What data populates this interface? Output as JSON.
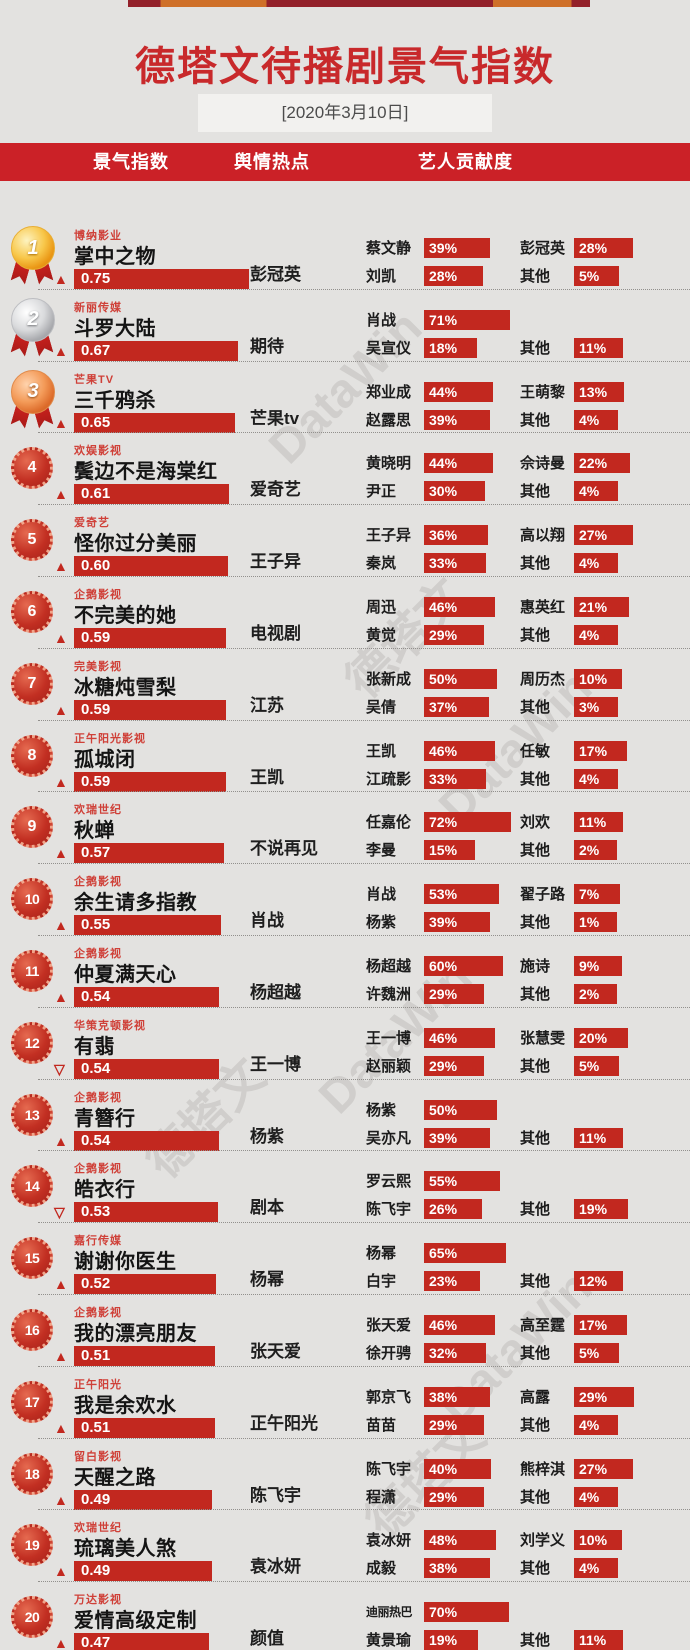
{
  "theme": {
    "background": "#e3e2e0",
    "bar_red": "#c2281f",
    "band_red": "#cb2127",
    "title_red": "#c8292b"
  },
  "watermark": {
    "cn": "德塔文",
    "en": "DataWin"
  },
  "header": {
    "title": "德塔文待播剧景气指数",
    "date": "[2020年3月10日]",
    "columns": [
      "景气指数",
      "舆情热点",
      "艺人贡献度"
    ]
  },
  "chart_data": {
    "type": "bar",
    "title": "德塔文待播剧景气指数",
    "date": "[2020年3月10日]",
    "columns": [
      "景气指数",
      "舆情热点",
      "艺人贡献度"
    ],
    "index_range": [
      0,
      1
    ],
    "rows": [
      {
        "rank": 1,
        "company": "博纳影业",
        "title": "掌中之物",
        "trend": "up",
        "index": 0.75,
        "index_label": "0.75",
        "hotspot": "彭冠英",
        "left": [
          {
            "name": "蔡文静",
            "pct": 39,
            "label": "39%"
          },
          {
            "name": "刘凯",
            "pct": 28,
            "label": "28%"
          }
        ],
        "right": [
          {
            "name": "彭冠英",
            "pct": 28,
            "label": "28%"
          },
          {
            "name": "其他",
            "pct": 5,
            "label": "5%"
          }
        ]
      },
      {
        "rank": 2,
        "company": "新丽传媒",
        "title": "斗罗大陆",
        "trend": "up",
        "index": 0.67,
        "index_label": "0.67",
        "hotspot": "期待",
        "left": [
          {
            "name": "肖战",
            "pct": 71,
            "label": "71%"
          },
          {
            "name": "吴宣仪",
            "pct": 18,
            "label": "18%"
          }
        ],
        "right": [
          null,
          {
            "name": "其他",
            "pct": 11,
            "label": "11%"
          }
        ]
      },
      {
        "rank": 3,
        "company": "芒果TV",
        "title": "三千鸦杀",
        "trend": "up",
        "index": 0.65,
        "index_label": "0.65",
        "hotspot": "芒果tv",
        "left": [
          {
            "name": "郑业成",
            "pct": 44,
            "label": "44%"
          },
          {
            "name": "赵露思",
            "pct": 39,
            "label": "39%"
          }
        ],
        "right": [
          {
            "name": "王萌黎",
            "pct": 13,
            "label": "13%"
          },
          {
            "name": "其他",
            "pct": 4,
            "label": "4%"
          }
        ]
      },
      {
        "rank": 4,
        "company": "欢娱影视",
        "title": "鬓边不是海棠红",
        "trend": "up",
        "index": 0.61,
        "index_label": "0.61",
        "hotspot": "爱奇艺",
        "left": [
          {
            "name": "黄晓明",
            "pct": 44,
            "label": "44%"
          },
          {
            "name": "尹正",
            "pct": 30,
            "label": "30%"
          }
        ],
        "right": [
          {
            "name": "佘诗曼",
            "pct": 22,
            "label": "22%"
          },
          {
            "name": "其他",
            "pct": 4,
            "label": "4%"
          }
        ]
      },
      {
        "rank": 5,
        "company": "爱奇艺",
        "title": "怪你过分美丽",
        "trend": "up",
        "index": 0.6,
        "index_label": "0.60",
        "hotspot": "王子异",
        "left": [
          {
            "name": "王子异",
            "pct": 36,
            "label": "36%"
          },
          {
            "name": "秦岚",
            "pct": 33,
            "label": "33%"
          }
        ],
        "right": [
          {
            "name": "高以翔",
            "pct": 27,
            "label": "27%"
          },
          {
            "name": "其他",
            "pct": 4,
            "label": "4%"
          }
        ]
      },
      {
        "rank": 6,
        "company": "企鹅影视",
        "title": "不完美的她",
        "trend": "up",
        "index": 0.59,
        "index_label": "0.59",
        "hotspot": "电视剧",
        "left": [
          {
            "name": "周迅",
            "pct": 46,
            "label": "46%"
          },
          {
            "name": "黄觉",
            "pct": 29,
            "label": "29%"
          }
        ],
        "right": [
          {
            "name": "惠英红",
            "pct": 21,
            "label": "21%"
          },
          {
            "name": "其他",
            "pct": 4,
            "label": "4%"
          }
        ]
      },
      {
        "rank": 7,
        "company": "完美影视",
        "title": "冰糖炖雪梨",
        "trend": "up",
        "index": 0.59,
        "index_label": "0.59",
        "hotspot": "江苏",
        "left": [
          {
            "name": "张新成",
            "pct": 50,
            "label": "50%"
          },
          {
            "name": "吴倩",
            "pct": 37,
            "label": "37%"
          }
        ],
        "right": [
          {
            "name": "周历杰",
            "pct": 10,
            "label": "10%"
          },
          {
            "name": "其他",
            "pct": 3,
            "label": "3%"
          }
        ]
      },
      {
        "rank": 8,
        "company": "正午阳光影视",
        "title": "孤城闭",
        "trend": "up",
        "index": 0.59,
        "index_label": "0.59",
        "hotspot": "王凯",
        "left": [
          {
            "name": "王凯",
            "pct": 46,
            "label": "46%"
          },
          {
            "name": "江疏影",
            "pct": 33,
            "label": "33%"
          }
        ],
        "right": [
          {
            "name": "任敏",
            "pct": 17,
            "label": "17%"
          },
          {
            "name": "其他",
            "pct": 4,
            "label": "4%"
          }
        ]
      },
      {
        "rank": 9,
        "company": "欢瑞世纪",
        "title": "秋蝉",
        "trend": "up",
        "index": 0.57,
        "index_label": "0.57",
        "hotspot": "不说再见",
        "left": [
          {
            "name": "任嘉伦",
            "pct": 72,
            "label": "72%"
          },
          {
            "name": "李曼",
            "pct": 15,
            "label": "15%"
          }
        ],
        "right": [
          {
            "name": "刘欢",
            "pct": 11,
            "label": "11%"
          },
          {
            "name": "其他",
            "pct": 2,
            "label": "2%"
          }
        ]
      },
      {
        "rank": 10,
        "company": "企鹅影视",
        "title": "余生请多指教",
        "trend": "up",
        "index": 0.55,
        "index_label": "0.55",
        "hotspot": "肖战",
        "left": [
          {
            "name": "肖战",
            "pct": 53,
            "label": "53%"
          },
          {
            "name": "杨紫",
            "pct": 39,
            "label": "39%"
          }
        ],
        "right": [
          {
            "name": "翟子路",
            "pct": 7,
            "label": "7%"
          },
          {
            "name": "其他",
            "pct": 1,
            "label": "1%"
          }
        ]
      },
      {
        "rank": 11,
        "company": "企鹅影视",
        "title": "仲夏满天心",
        "trend": "up",
        "index": 0.54,
        "index_label": "0.54",
        "hotspot": "杨超越",
        "left": [
          {
            "name": "杨超越",
            "pct": 60,
            "label": "60%"
          },
          {
            "name": "许魏洲",
            "pct": 29,
            "label": "29%"
          }
        ],
        "right": [
          {
            "name": "施诗",
            "pct": 9,
            "label": "9%"
          },
          {
            "name": "其他",
            "pct": 2,
            "label": "2%"
          }
        ]
      },
      {
        "rank": 12,
        "company": "华策克顿影视",
        "title": "有翡",
        "trend": "down",
        "index": 0.54,
        "index_label": "0.54",
        "hotspot": "王一博",
        "left": [
          {
            "name": "王一博",
            "pct": 46,
            "label": "46%"
          },
          {
            "name": "赵丽颖",
            "pct": 29,
            "label": "29%"
          }
        ],
        "right": [
          {
            "name": "张慧雯",
            "pct": 20,
            "label": "20%"
          },
          {
            "name": "其他",
            "pct": 5,
            "label": "5%"
          }
        ]
      },
      {
        "rank": 13,
        "company": "企鹅影视",
        "title": "青簪行",
        "trend": "up",
        "index": 0.54,
        "index_label": "0.54",
        "hotspot": "杨紫",
        "left": [
          {
            "name": "杨紫",
            "pct": 50,
            "label": "50%"
          },
          {
            "name": "吴亦凡",
            "pct": 39,
            "label": "39%"
          }
        ],
        "right": [
          null,
          {
            "name": "其他",
            "pct": 11,
            "label": "11%"
          }
        ]
      },
      {
        "rank": 14,
        "company": "企鹅影视",
        "title": "皓衣行",
        "trend": "down",
        "index": 0.53,
        "index_label": "0.53",
        "hotspot": "剧本",
        "left": [
          {
            "name": "罗云熙",
            "pct": 55,
            "label": "55%"
          },
          {
            "name": "陈飞宇",
            "pct": 26,
            "label": "26%"
          }
        ],
        "right": [
          null,
          {
            "name": "其他",
            "pct": 19,
            "label": "19%"
          }
        ]
      },
      {
        "rank": 15,
        "company": "嘉行传媒",
        "title": "谢谢你医生",
        "trend": "up",
        "index": 0.52,
        "index_label": "0.52",
        "hotspot": "杨幂",
        "left": [
          {
            "name": "杨幂",
            "pct": 65,
            "label": "65%"
          },
          {
            "name": "白宇",
            "pct": 23,
            "label": "23%"
          }
        ],
        "right": [
          null,
          {
            "name": "其他",
            "pct": 12,
            "label": "12%"
          }
        ]
      },
      {
        "rank": 16,
        "company": "企鹅影视",
        "title": "我的漂亮朋友",
        "trend": "up",
        "index": 0.51,
        "index_label": "0.51",
        "hotspot": "张天爱",
        "left": [
          {
            "name": "张天爱",
            "pct": 46,
            "label": "46%"
          },
          {
            "name": "徐开骋",
            "pct": 32,
            "label": "32%"
          }
        ],
        "right": [
          {
            "name": "高至霆",
            "pct": 17,
            "label": "17%"
          },
          {
            "name": "其他",
            "pct": 5,
            "label": "5%"
          }
        ]
      },
      {
        "rank": 17,
        "company": "正午阳光",
        "title": "我是余欢水",
        "trend": "up",
        "index": 0.51,
        "index_label": "0.51",
        "hotspot": "正午阳光",
        "left": [
          {
            "name": "郭京飞",
            "pct": 38,
            "label": "38%"
          },
          {
            "name": "苗苗",
            "pct": 29,
            "label": "29%"
          }
        ],
        "right": [
          {
            "name": "高露",
            "pct": 29,
            "label": "29%"
          },
          {
            "name": "其他",
            "pct": 4,
            "label": "4%"
          }
        ]
      },
      {
        "rank": 18,
        "company": "留白影视",
        "title": "天醒之路",
        "trend": "up",
        "index": 0.49,
        "index_label": "0.49",
        "hotspot": "陈飞宇",
        "left": [
          {
            "name": "陈飞宇",
            "pct": 40,
            "label": "40%"
          },
          {
            "name": "程潇",
            "pct": 29,
            "label": "29%"
          }
        ],
        "right": [
          {
            "name": "熊梓淇",
            "pct": 27,
            "label": "27%"
          },
          {
            "name": "其他",
            "pct": 4,
            "label": "4%"
          }
        ]
      },
      {
        "rank": 19,
        "company": "欢瑞世纪",
        "title": "琉璃美人煞",
        "trend": "up",
        "index": 0.49,
        "index_label": "0.49",
        "hotspot": "袁冰妍",
        "left": [
          {
            "name": "袁冰妍",
            "pct": 48,
            "label": "48%"
          },
          {
            "name": "成毅",
            "pct": 38,
            "label": "38%"
          }
        ],
        "right": [
          {
            "name": "刘学义",
            "pct": 10,
            "label": "10%"
          },
          {
            "name": "其他",
            "pct": 4,
            "label": "4%"
          }
        ]
      },
      {
        "rank": 20,
        "company": "万达影视",
        "title": "爱情高级定制",
        "trend": "up",
        "index": 0.47,
        "index_label": "0.47",
        "hotspot": "颜值",
        "left": [
          {
            "name": "迪丽热巴",
            "pct": 70,
            "label": "70%"
          },
          {
            "name": "黄景瑜",
            "pct": 19,
            "label": "19%"
          }
        ],
        "right": [
          null,
          {
            "name": "其他",
            "pct": 11,
            "label": "11%"
          }
        ]
      }
    ]
  }
}
